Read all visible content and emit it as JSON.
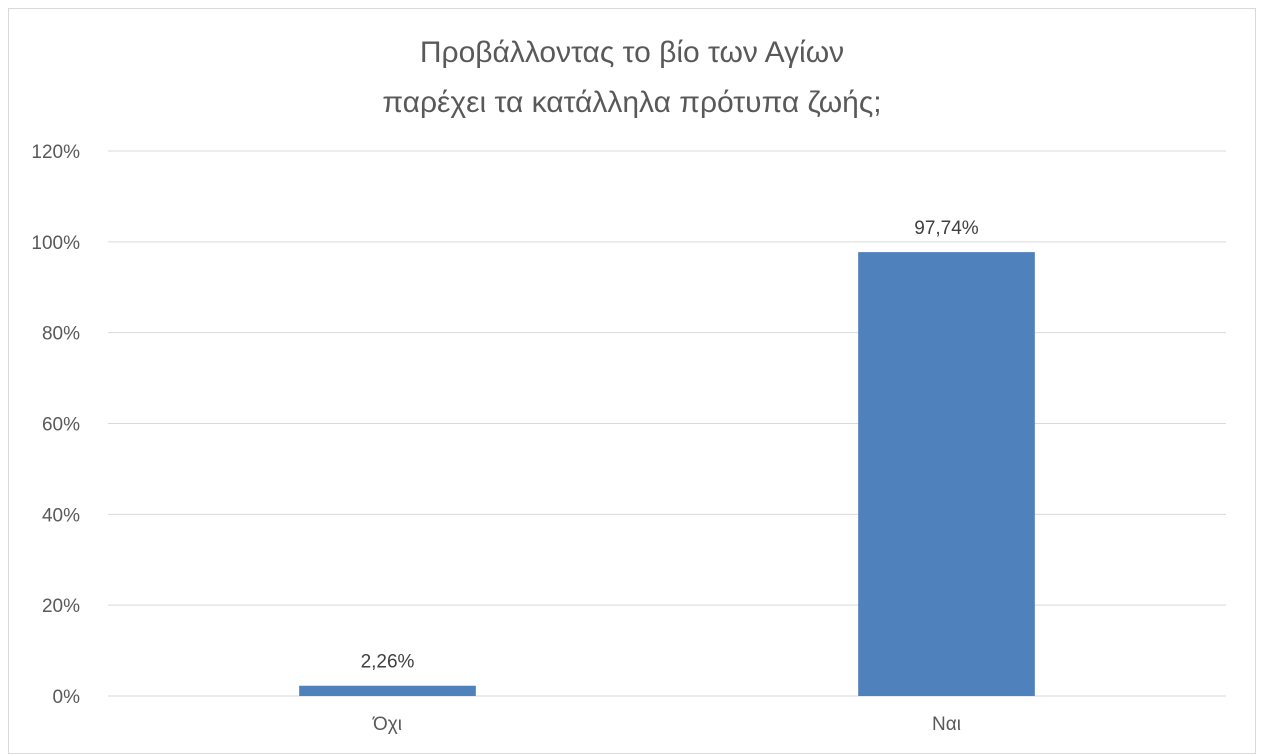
{
  "chart_data": {
    "type": "bar",
    "title_lines": [
      "Προβάλλοντας το βίο των Αγίων",
      "παρέχει τα κατάλληλα πρότυπα ζωής;"
    ],
    "categories": [
      "Όχι",
      "Ναι"
    ],
    "values": [
      2.26,
      97.74
    ],
    "data_labels": [
      "2,26%",
      "97,74%"
    ],
    "ylim": [
      0,
      120
    ],
    "yticks": [
      0,
      20,
      40,
      60,
      80,
      100,
      120
    ],
    "ytick_labels": [
      "0%",
      "20%",
      "40%",
      "60%",
      "80%",
      "100%",
      "120%"
    ],
    "grid": true,
    "legend": "none",
    "colors": {
      "bar": "#4f81bd",
      "grid": "#d9d9d9",
      "text": "#595959"
    }
  }
}
